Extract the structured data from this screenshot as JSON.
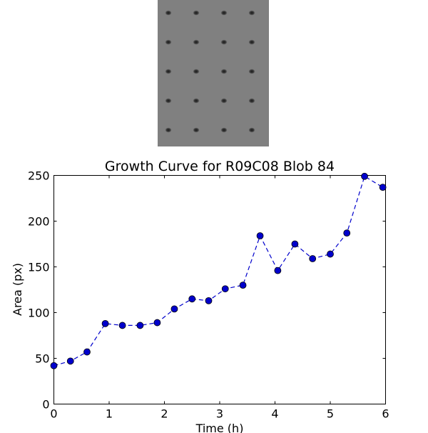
{
  "chart_data": {
    "type": "line",
    "title": "Growth Curve for R09C08 Blob 84",
    "xlabel": "Time (h)",
    "ylabel": "Area (px)",
    "xlim": [
      0,
      6
    ],
    "ylim": [
      0,
      250
    ],
    "x_ticks": [
      "0",
      "1",
      "2",
      "3",
      "4",
      "5",
      "6"
    ],
    "y_ticks": [
      "0",
      "50",
      "100",
      "150",
      "200",
      "250"
    ],
    "grid": false,
    "series": [
      {
        "x": [
          0.0,
          0.3,
          0.6,
          0.93,
          1.24,
          1.56,
          1.87,
          2.18,
          2.5,
          2.8,
          3.1,
          3.42,
          3.73,
          4.05,
          4.36,
          4.68,
          5.0,
          5.3,
          5.62,
          5.95
        ],
        "y": [
          42,
          47,
          57,
          88,
          86,
          86,
          89,
          104,
          115,
          113,
          126,
          130,
          184,
          146,
          175,
          159,
          164,
          187,
          249,
          237
        ],
        "color": "#0000cc",
        "line_style": "dashed",
        "marker": "circle"
      }
    ]
  },
  "image_panel": {
    "description_free": true,
    "background_color": "#808080",
    "dot_color": "#2a2a2a",
    "rows": 5,
    "cols": 4
  }
}
